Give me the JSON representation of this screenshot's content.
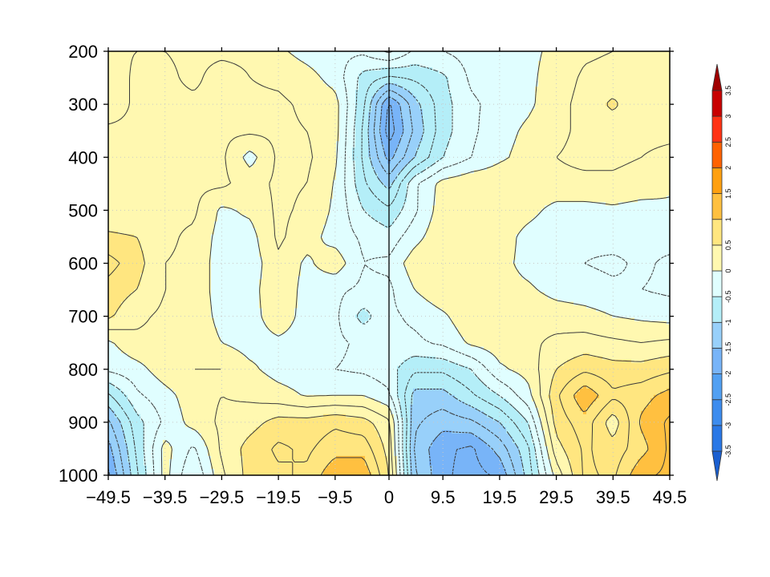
{
  "chart_data": {
    "type": "heatmap",
    "style": "filled contour with contour lines (negative dashed)",
    "title": "",
    "xlabel": "",
    "ylabel": "",
    "xlim": [
      -49.5,
      49.5
    ],
    "ylim": [
      1000,
      200
    ],
    "y_reversed": true,
    "grid": "dotted",
    "x_ticks": [
      -49.5,
      -39.5,
      -29.5,
      -19.5,
      -9.5,
      0,
      9.5,
      19.5,
      29.5,
      39.5,
      49.5
    ],
    "x_tick_labels": [
      "−49.5",
      "−39.5",
      "−29.5",
      "−19.5",
      "−9.5",
      "0",
      "9.5",
      "19.5",
      "29.5",
      "39.5",
      "49.5"
    ],
    "y_ticks": [
      200,
      300,
      400,
      500,
      600,
      700,
      800,
      900,
      1000
    ],
    "y_tick_labels": [
      "200",
      "300",
      "400",
      "500",
      "600",
      "700",
      "800",
      "900",
      "1000"
    ],
    "reference_line_x": 0,
    "x": [
      -49.5,
      -44.5,
      -39.5,
      -34.5,
      -29.5,
      -24.5,
      -19.5,
      -14.5,
      -9.5,
      -4.5,
      0,
      4.5,
      9.5,
      14.5,
      19.5,
      24.5,
      29.5,
      34.5,
      39.5,
      44.5,
      49.5
    ],
    "y": [
      200,
      250,
      300,
      350,
      400,
      450,
      500,
      550,
      600,
      650,
      700,
      750,
      800,
      850,
      900,
      950,
      1000
    ],
    "z": [
      [
        0.2,
        0.25,
        0.25,
        0.2,
        0.2,
        0.2,
        0.05,
        -0.1,
        -0.2,
        -0.2,
        0.05,
        -0.3,
        -0.25,
        -0.15,
        -0.1,
        -0.05,
        0.05,
        0.2,
        0.25,
        0.3,
        0.3
      ],
      [
        0.1,
        0.3,
        0.3,
        0.2,
        0.35,
        0.25,
        0.2,
        0.1,
        -0.1,
        -0.6,
        -0.8,
        -0.7,
        -0.55,
        -0.2,
        -0.1,
        -0.05,
        0.1,
        0.3,
        0.35,
        0.3,
        0.3
      ],
      [
        0.1,
        0.3,
        0.3,
        0.3,
        0.3,
        0.3,
        0.3,
        0.2,
        0.1,
        -0.7,
        -1.8,
        -1.1,
        -0.6,
        -0.3,
        -0.15,
        -0.05,
        0.15,
        0.35,
        0.55,
        0.3,
        0.3
      ],
      [
        0.3,
        0.3,
        0.3,
        0.3,
        0.3,
        0.3,
        0.3,
        0.25,
        0.1,
        -0.8,
        -1.9,
        -1.2,
        -0.6,
        -0.3,
        -0.1,
        0.05,
        0.2,
        0.3,
        0.35,
        0.3,
        0.3
      ],
      [
        0.3,
        0.3,
        0.3,
        0.3,
        0.3,
        -0.1,
        0.3,
        0.3,
        0.05,
        -0.8,
        -1.6,
        -1.0,
        -0.5,
        -0.25,
        -0.05,
        0.1,
        0.25,
        0.3,
        0.3,
        0.25,
        0.2
      ],
      [
        0.3,
        0.3,
        0.3,
        0.3,
        0.3,
        0.15,
        0.3,
        0.25,
        -0.02,
        -0.7,
        -1.1,
        -0.3,
        0.1,
        0.2,
        0.2,
        0.2,
        0.2,
        0.2,
        0.2,
        0.15,
        0.05
      ],
      [
        0.3,
        0.3,
        0.3,
        0.3,
        -0.05,
        0.05,
        0.3,
        0.2,
        -0.05,
        -0.5,
        -0.7,
        -0.3,
        0.15,
        0.25,
        0.2,
        0.1,
        -0.1,
        -0.1,
        -0.05,
        -0.1,
        -0.05
      ],
      [
        0.55,
        0.5,
        0.3,
        0.2,
        -0.1,
        -0.1,
        0.3,
        0.1,
        -0.1,
        -0.3,
        -0.4,
        -0.1,
        0.2,
        0.2,
        0.15,
        -0.1,
        -0.2,
        -0.2,
        -0.15,
        -0.2,
        -0.15
      ],
      [
        0.85,
        0.6,
        0.25,
        0.2,
        -0.15,
        -0.15,
        0.2,
        -0.05,
        0.15,
        -0.25,
        -0.2,
        0.15,
        0.25,
        0.15,
        0.1,
        -0.1,
        -0.2,
        -0.25,
        -0.3,
        -0.2,
        -0.3
      ],
      [
        0.65,
        0.5,
        0.25,
        0.2,
        -0.15,
        -0.1,
        0.2,
        -0.1,
        -0.2,
        -0.3,
        -0.3,
        0.0,
        0.2,
        0.15,
        0.1,
        0.05,
        -0.1,
        -0.15,
        -0.2,
        -0.25,
        -0.3
      ],
      [
        0.55,
        0.3,
        0.2,
        0.2,
        -0.1,
        -0.1,
        0.15,
        -0.1,
        -0.2,
        -0.6,
        -0.3,
        -0.2,
        -0.05,
        0.2,
        0.2,
        0.2,
        0.15,
        0.1,
        0.0,
        -0.05,
        -0.1
      ],
      [
        -0.05,
        0.2,
        0.2,
        0.2,
        0.0,
        -0.1,
        -0.05,
        -0.1,
        -0.2,
        -0.3,
        -0.3,
        -0.3,
        -0.2,
        0.05,
        0.15,
        0.2,
        0.3,
        0.35,
        0.3,
        0.25,
        0.3
      ],
      [
        -0.2,
        -0.1,
        0.15,
        0.25,
        0.25,
        0.05,
        -0.1,
        -0.15,
        -0.25,
        -0.3,
        -0.4,
        -0.7,
        -0.7,
        -0.5,
        -0.05,
        0.1,
        0.5,
        0.7,
        0.6,
        0.6,
        0.7
      ],
      [
        -0.8,
        -0.3,
        -0.1,
        0.15,
        0.25,
        0.2,
        0.1,
        -0.02,
        0.0,
        0.0,
        -0.2,
        -1.1,
        -1.1,
        -0.8,
        -0.5,
        -0.1,
        0.7,
        1.2,
        0.8,
        0.9,
        1.1
      ],
      [
        -1.3,
        -0.6,
        -0.2,
        0.1,
        0.3,
        0.4,
        0.6,
        0.6,
        0.7,
        0.6,
        0.3,
        -1.2,
        -1.4,
        -1.3,
        -1.0,
        -0.5,
        0.6,
        0.9,
        0.35,
        1.05,
        1.3
      ],
      [
        -1.6,
        -0.7,
        0.1,
        -0.3,
        0.3,
        0.6,
        0.8,
        0.7,
        0.9,
        0.9,
        0.4,
        -1.3,
        -1.7,
        -1.8,
        -1.4,
        -0.8,
        0.4,
        0.8,
        0.6,
        0.9,
        1.3
      ],
      [
        -1.8,
        -0.8,
        0.1,
        -0.5,
        0.2,
        0.6,
        0.7,
        0.8,
        1.2,
        1.2,
        0.5,
        -1.2,
        -1.7,
        -1.85,
        -1.7,
        -0.9,
        0.1,
        0.8,
        0.7,
        1.2,
        1.3
      ]
    ],
    "contour_levels": [
      -2,
      -1.75,
      -1.5,
      -1.25,
      -1,
      -0.75,
      -0.5,
      -0.25,
      0,
      0.25,
      0.5,
      0.75,
      1,
      1.25,
      1.5
    ],
    "colorbar": {
      "orientation": "vertical",
      "placement": "right",
      "levels": [
        -3.5,
        -3,
        -2.5,
        -2,
        -1.5,
        -1,
        -0.5,
        0,
        0.5,
        1,
        1.5,
        2,
        2.5,
        3,
        3.5
      ],
      "labels": [
        "-3.5",
        "-3",
        "-2.5",
        "-2",
        "-1.5",
        "-1",
        "-0.5",
        "0",
        "0.5",
        "1",
        "1.5",
        "2",
        "2.5",
        "3",
        "3.5"
      ],
      "colors": [
        "#1a5fd0",
        "#2a78e6",
        "#3d8cee",
        "#52a0f2",
        "#78b4f8",
        "#98d0fa",
        "#b4eef8",
        "#e0feff",
        "#fff8b0",
        "#ffe680",
        "#ffc040",
        "#ffa010",
        "#ff6200",
        "#ff3214",
        "#c80000",
        "#a00000"
      ],
      "end_triangles": true
    }
  }
}
